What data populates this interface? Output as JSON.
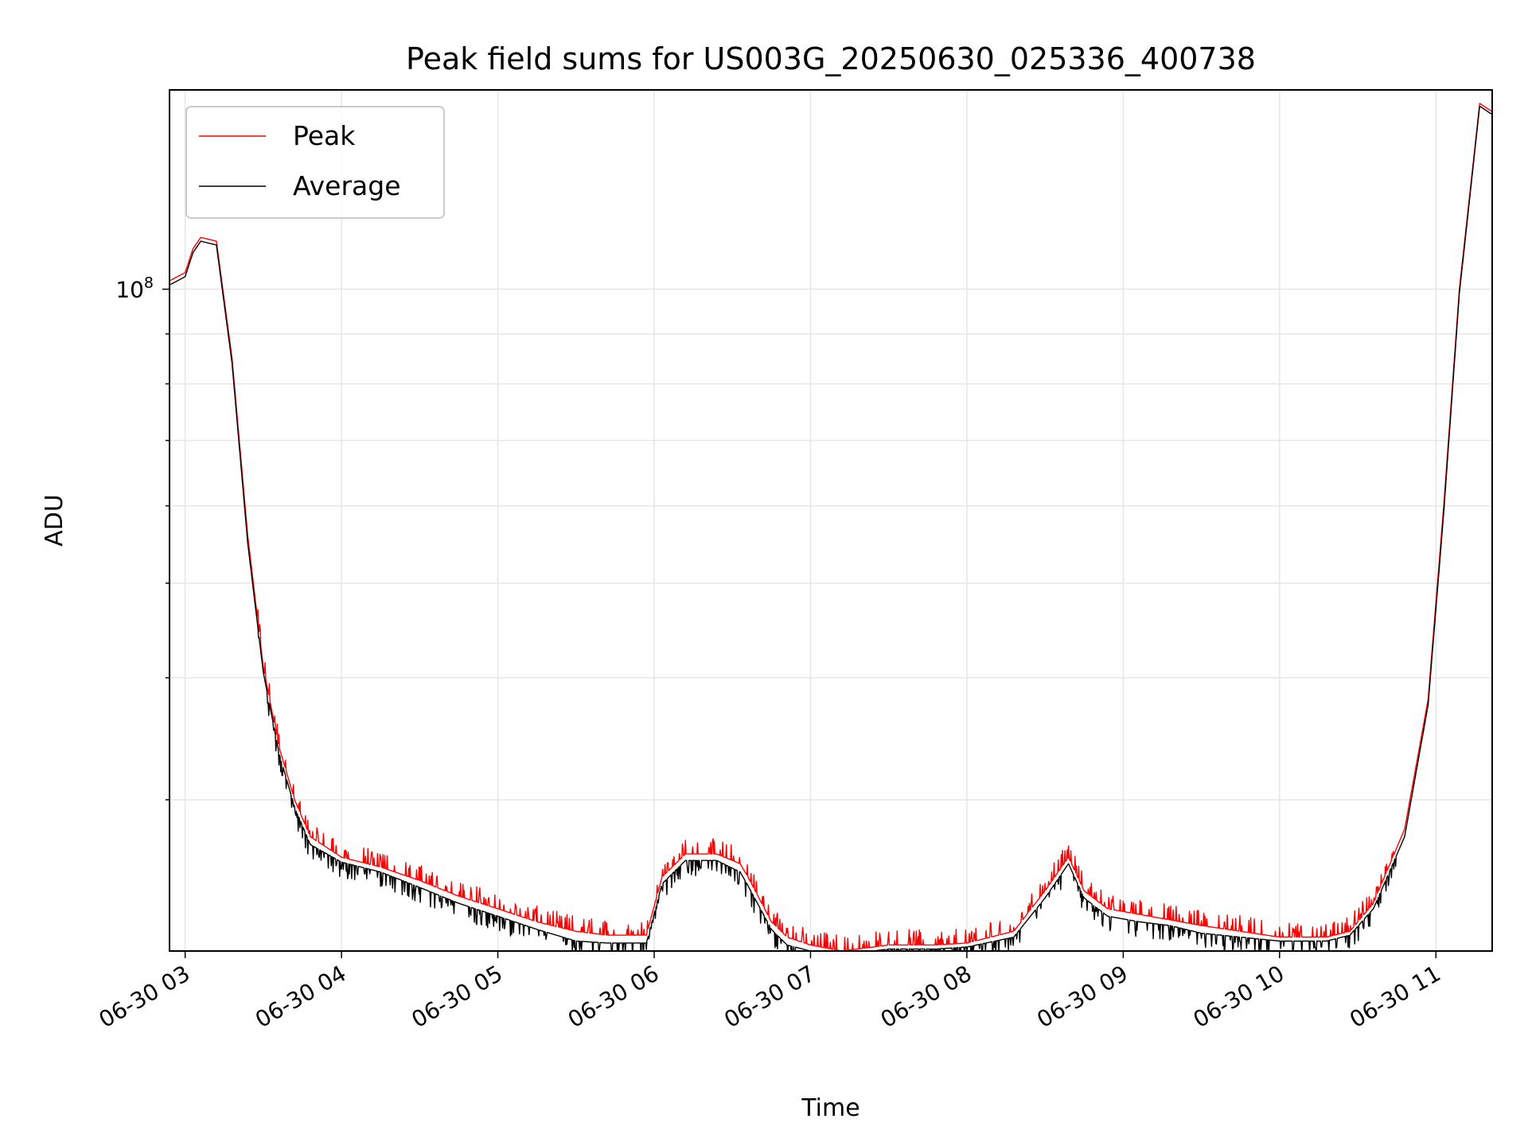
{
  "chart_data": {
    "type": "line",
    "title": "Peak field sums for US003G_20250630_025336_400738",
    "xlabel": "Time",
    "ylabel": "ADU",
    "x_unit": "hours (date 06-30)",
    "xlim": [
      2.9,
      11.36
    ],
    "ylim": [
      21000000,
      160000000
    ],
    "yscale": "log",
    "grid": true,
    "legend_position": "top-left",
    "x_ticks": [
      "06-30 03",
      "06-30 04",
      "06-30 05",
      "06-30 06",
      "06-30 07",
      "06-30 08",
      "06-30 09",
      "06-30 10",
      "06-30 11"
    ],
    "x_tick_values": [
      3,
      4,
      5,
      6,
      7,
      8,
      9,
      10,
      11
    ],
    "y_ticks": [
      "10^8"
    ],
    "y_tick_values": [
      100000000
    ],
    "series": [
      {
        "name": "Peak",
        "color": "#ff0000",
        "x": [
          2.9,
          3.0,
          3.05,
          3.1,
          3.2,
          3.3,
          3.4,
          3.5,
          3.6,
          3.7,
          3.8,
          4.0,
          4.25,
          4.5,
          4.75,
          5.0,
          5.25,
          5.5,
          5.7,
          5.95,
          6.05,
          6.2,
          6.4,
          6.55,
          6.6,
          6.75,
          6.85,
          7.0,
          7.2,
          7.5,
          7.8,
          8.0,
          8.3,
          8.5,
          8.65,
          8.75,
          8.9,
          9.1,
          9.3,
          9.5,
          9.75,
          10.0,
          10.3,
          10.45,
          10.6,
          10.8,
          10.95,
          11.05,
          11.15,
          11.28,
          11.36
        ],
        "y": [
          102000000,
          104000000,
          110000000,
          113000000,
          112000000,
          85000000,
          56000000,
          41000000,
          34000000,
          30000000,
          27500000,
          26200000,
          25600000,
          24800000,
          23900000,
          23200000,
          22500000,
          22000000,
          21800000,
          21800000,
          25000000,
          26400000,
          26400000,
          25800000,
          25000000,
          22500000,
          21700000,
          21300000,
          21000000,
          21300000,
          21300000,
          21400000,
          22000000,
          24200000,
          26200000,
          24200000,
          23200000,
          22900000,
          22600000,
          22300000,
          22000000,
          21700000,
          21700000,
          22000000,
          23500000,
          28000000,
          38000000,
          60000000,
          100000000,
          155000000,
          152000000
        ]
      },
      {
        "name": "Average",
        "color": "#000000",
        "x": [
          2.9,
          3.0,
          3.05,
          3.1,
          3.2,
          3.3,
          3.4,
          3.5,
          3.6,
          3.7,
          3.8,
          4.0,
          4.25,
          4.5,
          4.75,
          5.0,
          5.25,
          5.5,
          5.7,
          5.95,
          6.05,
          6.2,
          6.4,
          6.55,
          6.6,
          6.75,
          6.85,
          7.0,
          7.2,
          7.5,
          7.8,
          8.0,
          8.3,
          8.5,
          8.65,
          8.75,
          8.9,
          9.1,
          9.3,
          9.5,
          9.75,
          10.0,
          10.3,
          10.45,
          10.6,
          10.8,
          10.95,
          11.05,
          11.15,
          11.28,
          11.36
        ],
        "y": [
          101000000,
          103000000,
          109000000,
          112000000,
          111000000,
          84000000,
          55000000,
          40500000,
          33500000,
          29500000,
          27000000,
          25900000,
          25300000,
          24400000,
          23500000,
          22800000,
          22100000,
          21500000,
          21400000,
          21400000,
          24600000,
          26000000,
          26000000,
          25300000,
          24500000,
          22100000,
          21300000,
          21000000,
          20800000,
          21100000,
          21100000,
          21200000,
          21700000,
          23800000,
          25800000,
          23800000,
          22800000,
          22500000,
          22300000,
          21900000,
          21700000,
          21500000,
          21500000,
          21800000,
          23200000,
          27500000,
          37500000,
          59000000,
          99000000,
          154000000,
          151000000
        ]
      }
    ]
  }
}
